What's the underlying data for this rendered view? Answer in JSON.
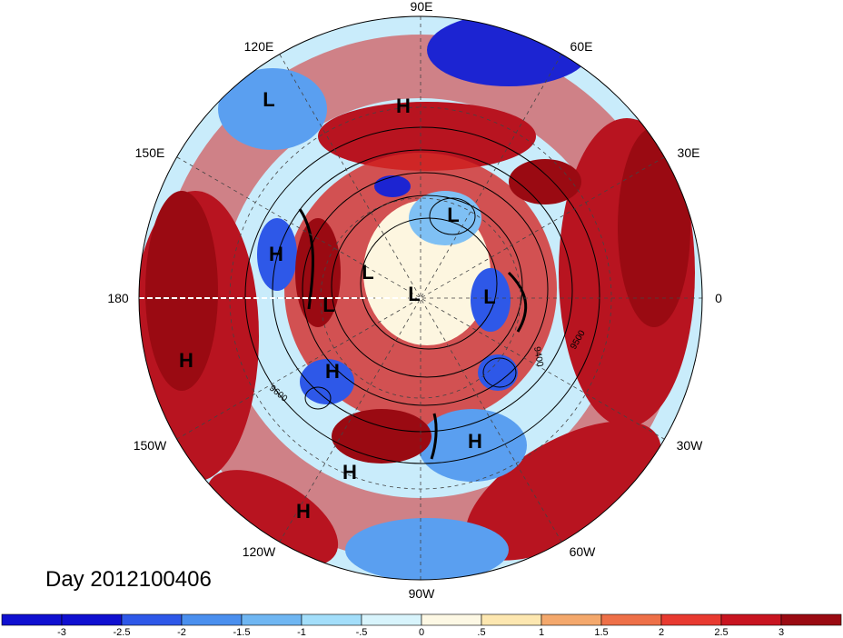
{
  "map": {
    "date_label": "Day 2012100406",
    "longitude_labels": [
      "90E",
      "60E",
      "30E",
      "0",
      "30W",
      "60W",
      "90W",
      "120W",
      "150W",
      "180",
      "150E",
      "120E"
    ],
    "pressure_centers": [
      {
        "type": "L"
      },
      {
        "type": "H"
      },
      {
        "type": "L"
      },
      {
        "type": "H"
      },
      {
        "type": "L"
      },
      {
        "type": "L"
      },
      {
        "type": "L"
      },
      {
        "type": "L"
      },
      {
        "type": "H"
      },
      {
        "type": "H"
      },
      {
        "type": "H"
      },
      {
        "type": "H"
      },
      {
        "type": "H"
      }
    ],
    "contour_labels": [
      "9400",
      "9500",
      "9600"
    ]
  },
  "colorbar": {
    "ticks": [
      "-3",
      "-2.5",
      "-2",
      "-1.5",
      "-1",
      "-.5",
      "0",
      ".5",
      "1",
      "1.5",
      "2",
      "2.5",
      "3"
    ],
    "colors": [
      "#1010d0",
      "#2e58e8",
      "#4a8fee",
      "#6fb6f2",
      "#a3defa",
      "#d8f4fc",
      "#fdf8e4",
      "#fde7b0",
      "#f4a86c",
      "#ee7048",
      "#e83a30",
      "#c81420",
      "#9a0a12"
    ]
  },
  "palette": {
    "deep_red": "#a60c18",
    "red": "#d42a28",
    "orange": "#f08a55",
    "cream": "#fdf6e0",
    "light_blue": "#bde8fb",
    "mid_blue": "#5a9ff0",
    "deep_blue": "#1c24d2"
  }
}
